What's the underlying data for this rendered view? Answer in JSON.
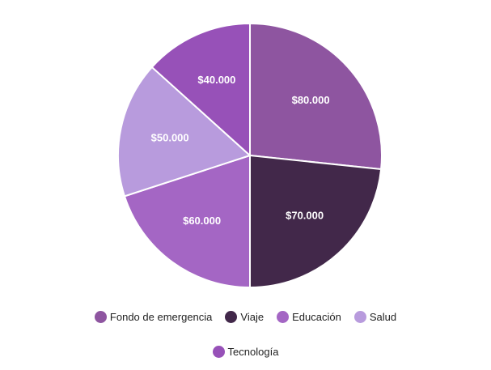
{
  "chart_data": {
    "type": "pie",
    "categories": [
      "Fondo de emergencia",
      "Viaje",
      "Educación",
      "Salud",
      "Tecnología"
    ],
    "values": [
      80000,
      70000,
      60000,
      50000,
      40000
    ],
    "value_labels": [
      "$80.000",
      "$70.000",
      "$60.000",
      "$50.000",
      "$40.000"
    ],
    "colors": [
      "#8e55a0",
      "#42284a",
      "#a466c4",
      "#b89bdd",
      "#9751b8"
    ],
    "start_angle_deg": 0,
    "direction": "clockwise",
    "legend_position": "bottom"
  }
}
